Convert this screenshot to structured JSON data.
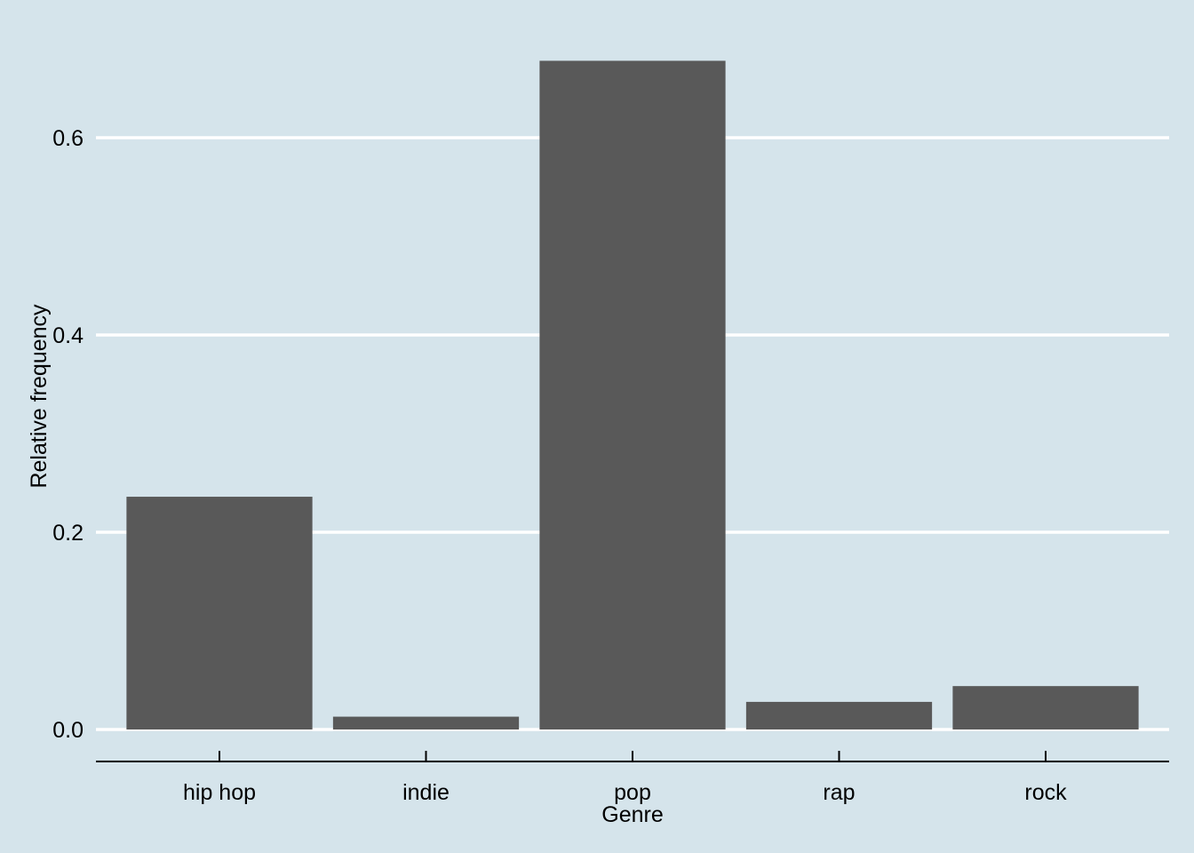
{
  "chart_data": {
    "type": "bar",
    "categories": [
      "hip hop",
      "indie",
      "pop",
      "rap",
      "rock"
    ],
    "values": [
      0.236,
      0.013,
      0.678,
      0.028,
      0.044
    ],
    "title": "",
    "xlabel": "Genre",
    "ylabel": "Relative frequency",
    "ylim": [
      -0.03,
      0.71
    ],
    "yticks": [
      0.0,
      0.2,
      0.4,
      0.6
    ],
    "ytick_labels": [
      "0.0",
      "0.2",
      "0.4",
      "0.6"
    ],
    "grid": "horizontal",
    "colors": {
      "background": "#d5e4eb",
      "bar": "#595959",
      "grid": "#ffffff",
      "axis": "#000000"
    }
  }
}
